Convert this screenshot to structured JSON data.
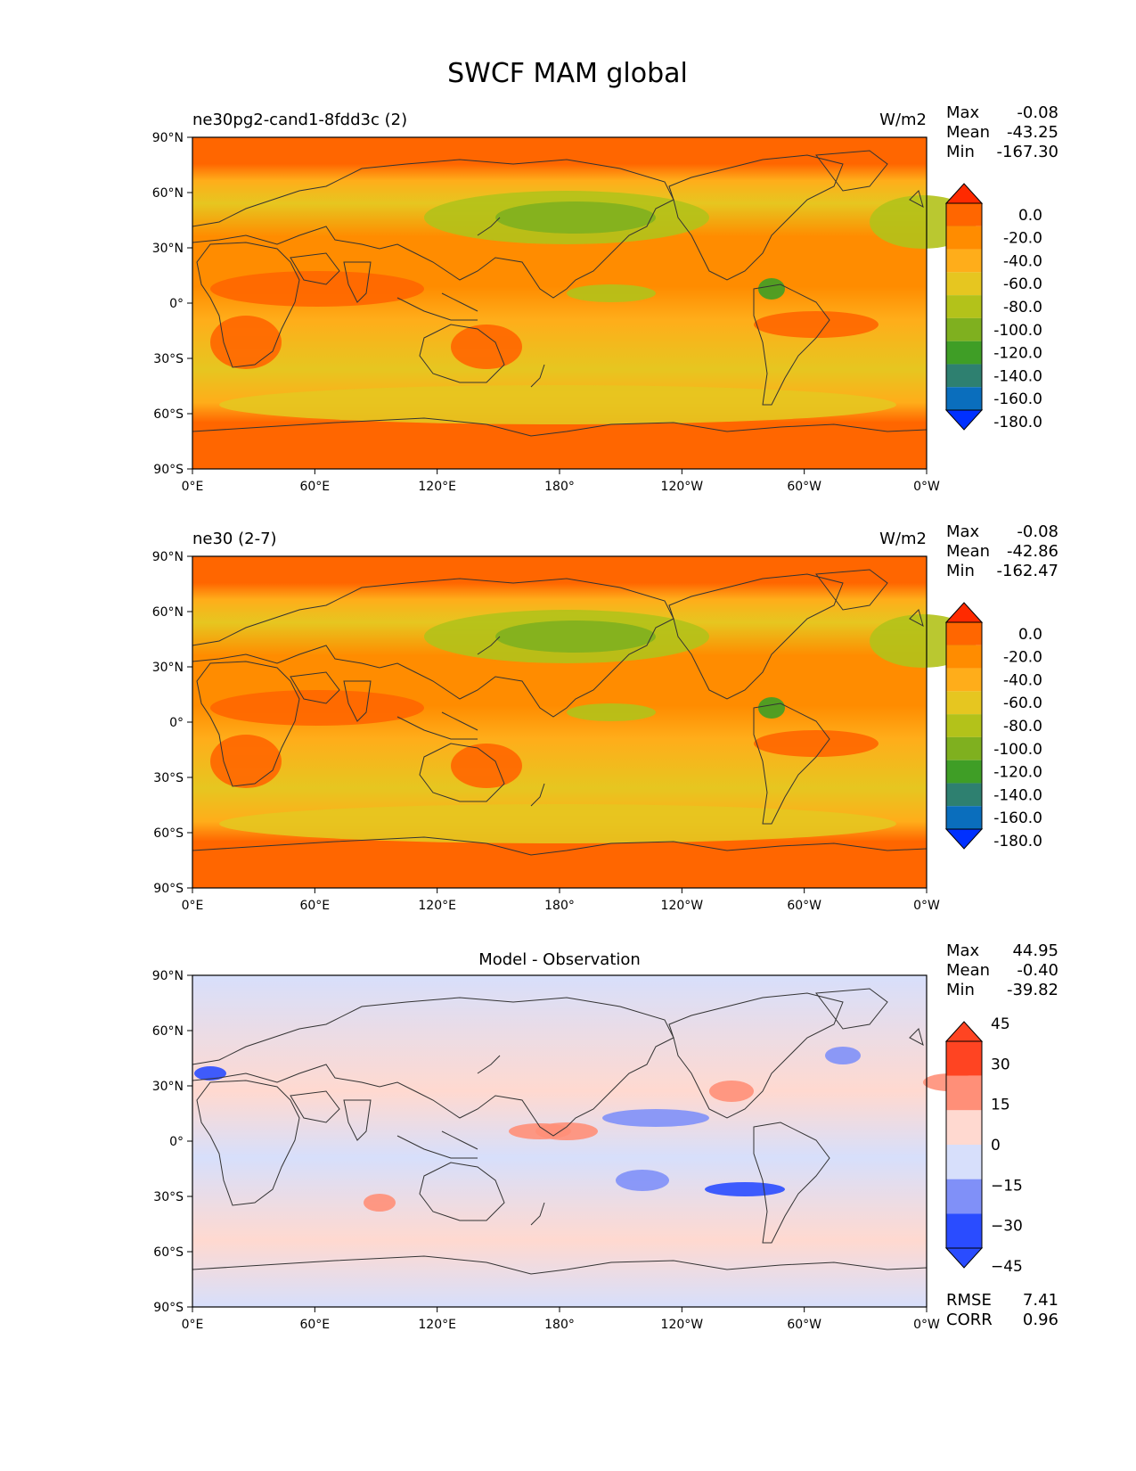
{
  "figure": {
    "title": "SWCF MAM global"
  },
  "axes": {
    "lat_ticks": [
      "90°N",
      "60°N",
      "30°N",
      "0°",
      "30°S",
      "60°S",
      "90°S"
    ],
    "lon_ticks": [
      "0°E",
      "60°E",
      "120°E",
      "180°",
      "120°W",
      "60°W",
      "0°W"
    ]
  },
  "panels": [
    {
      "id": "test",
      "left_title": "ne30pg2-cand1-8fdd3c (2)",
      "center_title": "",
      "units": "W/m2",
      "stats": [
        {
          "label": "Max",
          "value": "-0.08"
        },
        {
          "label": "Mean",
          "value": "-43.25"
        },
        {
          "label": "Min",
          "value": "-167.30"
        }
      ],
      "colorbar": {
        "labels": [
          "0.0",
          "-20.0",
          "-40.0",
          "-60.0",
          "-80.0",
          "-100.0",
          "-120.0",
          "-140.0",
          "-160.0",
          "-180.0"
        ],
        "colors": [
          "#ff2a00",
          "#ff6600",
          "#ff8c00",
          "#ffad1a",
          "#e6c620",
          "#b3c21a",
          "#7fb01f",
          "#3f9e26",
          "#2e8070",
          "#0a6ebd",
          "#0030ff"
        ]
      },
      "rmse": null
    },
    {
      "id": "reference",
      "left_title": "ne30 (2-7)",
      "center_title": "",
      "units": "W/m2",
      "stats": [
        {
          "label": "Max",
          "value": "-0.08"
        },
        {
          "label": "Mean",
          "value": "-42.86"
        },
        {
          "label": "Min",
          "value": "-162.47"
        }
      ],
      "colorbar": {
        "labels": [
          "0.0",
          "-20.0",
          "-40.0",
          "-60.0",
          "-80.0",
          "-100.0",
          "-120.0",
          "-140.0",
          "-160.0",
          "-180.0"
        ],
        "colors": [
          "#ff2a00",
          "#ff6600",
          "#ff8c00",
          "#ffad1a",
          "#e6c620",
          "#b3c21a",
          "#7fb01f",
          "#3f9e26",
          "#2e8070",
          "#0a6ebd",
          "#0030ff"
        ]
      },
      "rmse": null
    },
    {
      "id": "diff",
      "left_title": "",
      "center_title": "Model - Observation",
      "units": "",
      "stats": [
        {
          "label": "Max",
          "value": "44.95"
        },
        {
          "label": "Mean",
          "value": "-0.40"
        },
        {
          "label": "Min",
          "value": "-39.82"
        }
      ],
      "colorbar": {
        "labels": [
          "45",
          "30",
          "15",
          "0",
          "−15",
          "−30",
          "−45"
        ],
        "colors": [
          "#ff4422",
          "#ff8f78",
          "#ffd9d0",
          "#d7dffb",
          "#8090f8",
          "#2a4cff"
        ]
      },
      "rmse": {
        "label_rmse": "RMSE",
        "value_rmse": "7.41",
        "label_corr": "CORR",
        "value_corr": "0.96"
      }
    }
  ]
}
